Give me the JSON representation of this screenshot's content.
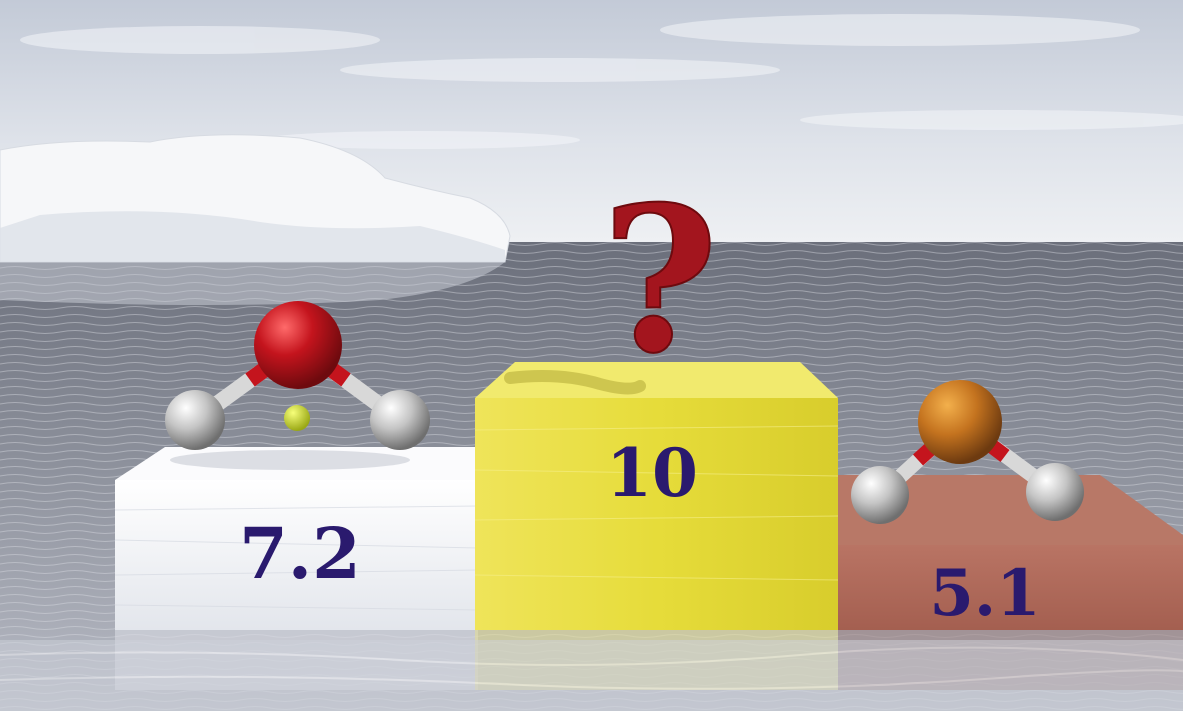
{
  "podium": {
    "left_value": "7.2",
    "center_value": "10",
    "center_mark": "?",
    "right_value": "5.1"
  },
  "colors": {
    "sky_top": "#c9d0dc",
    "sky_bottom": "#e7eaef",
    "sea_dark": "#565a66",
    "sea_light": "#a9adb8",
    "ice_white": "#f4f5f7",
    "gold_block": "#e5dc3f",
    "brown_block": "#b06a5a",
    "oxygen_red": "#b5121b",
    "sulfur_orange": "#c4731f",
    "hydrogen_grey": "#bdbdbd",
    "number_ink": "#2a1a6e",
    "question_red": "#a3151e"
  }
}
